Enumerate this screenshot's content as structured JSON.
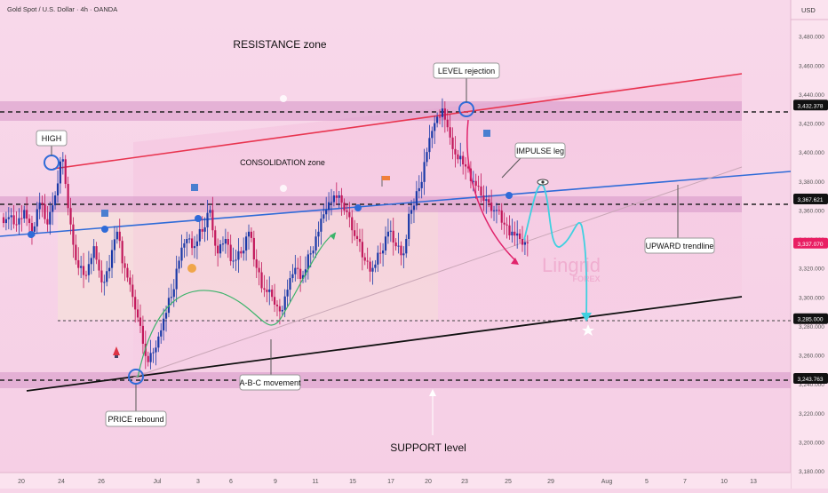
{
  "header": {
    "symbol_line": "Gold Spot / U.S. Dollar · 4h · OANDA",
    "currency": "USD"
  },
  "colors": {
    "background": "#f7d5e8",
    "background_upper": "#f8d7ea",
    "zone_band": "#d89ac9",
    "resistance_line": "#e8344f",
    "blue_trendline": "#2f6bd8",
    "support_line": "#111111",
    "bull_candle": "#1b3aa8",
    "bear_candle": "#c2185b",
    "projection": "#3fd0e0",
    "abc_curve": "#3bb36a",
    "impulse_arrow": "#e0246c",
    "price_tag": "#e91e63"
  },
  "chart_data": {
    "type": "candlestick",
    "title": "Gold Spot / U.S. Dollar · 4h · OANDA",
    "ylim": [
      3180,
      3500
    ],
    "y_ticks": [
      3480,
      3460,
      3440,
      3420,
      3400,
      3380,
      3360,
      3340,
      3320,
      3300,
      3280,
      3260,
      3240,
      3220,
      3200,
      3180
    ],
    "x_ticks": [
      "20",
      "24",
      "26",
      "Jul",
      "3",
      "6",
      "9",
      "11",
      "15",
      "17",
      "20",
      "23",
      "25",
      "29",
      "Aug",
      "5",
      "7",
      "10",
      "13"
    ],
    "price_labels": [
      {
        "label": "3,432.378",
        "value": 3432.378
      },
      {
        "label": "3,367.621",
        "value": 3367.621
      },
      {
        "label": "3,337.070",
        "value": 3337.07
      },
      {
        "label": "3,285.000",
        "value": 3285.0
      },
      {
        "label": "3,243.763",
        "value": 3243.763
      }
    ],
    "horizontal_levels": [
      3432.378,
      3367.621,
      3285.0,
      3243.763
    ],
    "zones": [
      {
        "name": "resistance band",
        "from": 3428,
        "to": 3440
      },
      {
        "name": "mid band",
        "from": 3360,
        "to": 3372
      },
      {
        "name": "support band",
        "from": 3236,
        "to": 3248
      }
    ],
    "close_path": [
      3355,
      3350,
      3360,
      3345,
      3365,
      3350,
      3370,
      3395,
      3350,
      3320,
      3315,
      3335,
      3310,
      3320,
      3345,
      3320,
      3300,
      3280,
      3255,
      3265,
      3285,
      3300,
      3325,
      3340,
      3335,
      3345,
      3360,
      3330,
      3340,
      3325,
      3330,
      3345,
      3320,
      3305,
      3300,
      3290,
      3305,
      3320,
      3315,
      3330,
      3345,
      3360,
      3370,
      3365,
      3355,
      3340,
      3325,
      3320,
      3330,
      3345,
      3335,
      3330,
      3360,
      3375,
      3400,
      3420,
      3430,
      3410,
      3395,
      3390,
      3380,
      3370,
      3365,
      3360,
      3350,
      3345,
      3340,
      3337
    ],
    "annotations": [
      "RESISTANCE zone",
      "CONSOLIDATION zone",
      "LEVEL rejection",
      "HIGH",
      "IMPULSE leg",
      "UPWARD trendline",
      "A-B-C movement",
      "PRICE rebound",
      "SUPPORT level"
    ],
    "watermark": "Lingrid FOREX"
  }
}
